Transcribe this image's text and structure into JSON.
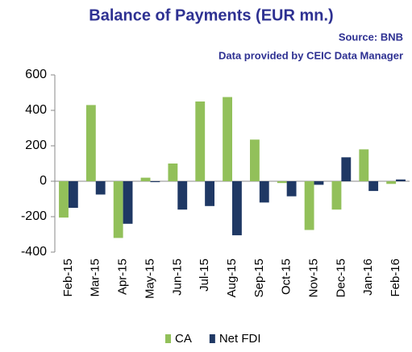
{
  "chart_data": {
    "type": "bar",
    "title": "Balance of Payments (EUR mn.)",
    "subtitle": "Source: BNB",
    "annotation": "Data provided by CEIC Data Manager",
    "categories": [
      "Feb-15",
      "Mar-15",
      "Apr-15",
      "May-15",
      "Jun-15",
      "Jul-15",
      "Aug-15",
      "Sep-15",
      "Oct-15",
      "Nov-15",
      "Dec-15",
      "Jan-16",
      "Feb-16"
    ],
    "series": [
      {
        "name": "CA",
        "color": "#92c05a",
        "values": [
          -205,
          430,
          -320,
          20,
          100,
          450,
          475,
          235,
          -10,
          -275,
          -160,
          180,
          -15
        ]
      },
      {
        "name": "Net FDI",
        "color": "#1f3864",
        "values": [
          -150,
          -75,
          -240,
          -5,
          -160,
          -140,
          -305,
          -120,
          -85,
          -20,
          135,
          -55,
          10
        ]
      }
    ],
    "ylim": [
      -400,
      600
    ],
    "yticks": [
      -400,
      -200,
      0,
      200,
      400,
      600
    ],
    "grid": false,
    "legend": "bottom"
  }
}
